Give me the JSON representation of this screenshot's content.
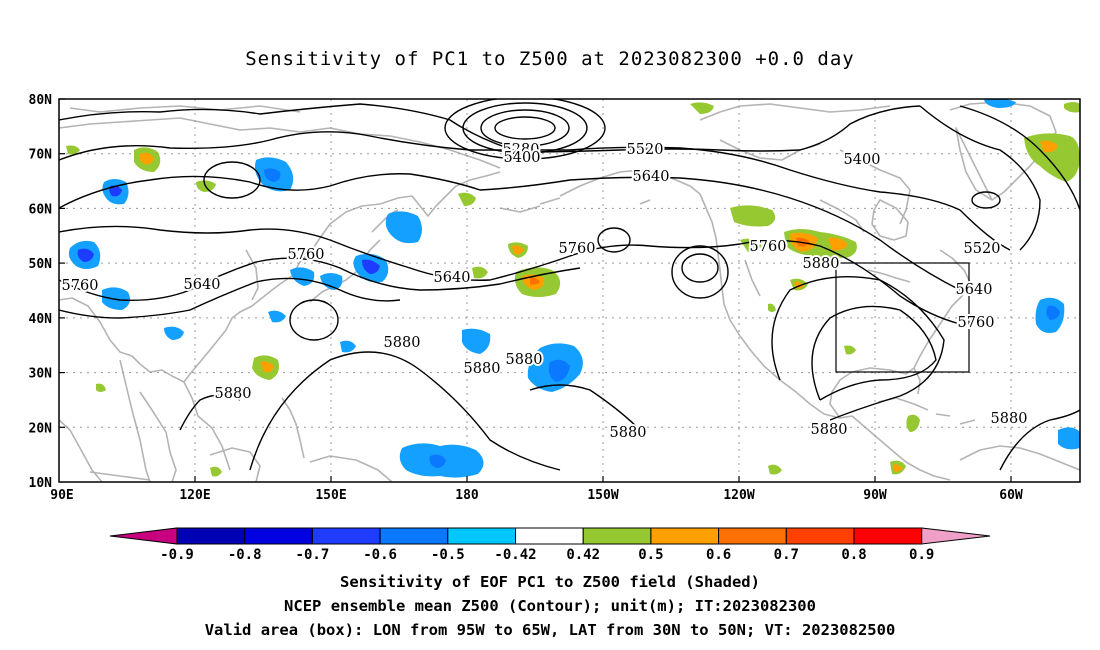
{
  "title": "Sensitivity of PC1 to Z500 at 2023082300 +0.0 day",
  "axes": {
    "lat_labels": [
      "80N",
      "70N",
      "60N",
      "50N",
      "40N",
      "30N",
      "20N",
      "10N"
    ],
    "lon_labels": [
      "90E",
      "120E",
      "150E",
      "180",
      "150W",
      "120W",
      "90W",
      "60W"
    ]
  },
  "colorbar": {
    "tick_labels": [
      "-0.9",
      "-0.8",
      "-0.7",
      "-0.6",
      "-0.5",
      "-0.42",
      "0.42",
      "0.5",
      "0.6",
      "0.7",
      "0.8",
      "0.9"
    ],
    "colors": [
      "#c8007f",
      "#0000b4",
      "#0000e0",
      "#1e3cff",
      "#0a78ff",
      "#14a0ff",
      "#00c8ff",
      "#ffffff",
      "#96c832",
      "#ffa000",
      "#ff7000",
      "#ff4000",
      "#ff0000",
      "#f0a0c8"
    ]
  },
  "contour_labels": [
    "5280",
    "5400",
    "5520",
    "5400",
    "5640",
    "5760",
    "5640",
    "5760",
    "5640",
    "5760",
    "5760",
    "5880",
    "5520",
    "5640",
    "5760",
    "5880",
    "5880",
    "5880",
    "5880",
    "5880",
    "5880",
    "5880"
  ],
  "valid_box": {
    "lon_west": "95W",
    "lon_east": "65W",
    "lat_south": "30N",
    "lat_north": "50N"
  },
  "captions": {
    "line1": "Sensitivity of EOF PC1 to Z500 field (Shaded)",
    "line2": "NCEP ensemble mean Z500 (Contour); unit(m); IT:2023082300",
    "line3": "Valid area (box): LON from 95W to 65W, LAT from 30N to 50N; VT: 2023082500"
  },
  "colors": {
    "coastline": "#b4b4b4",
    "contour": "#000000",
    "grid": "#9a9a9a"
  }
}
